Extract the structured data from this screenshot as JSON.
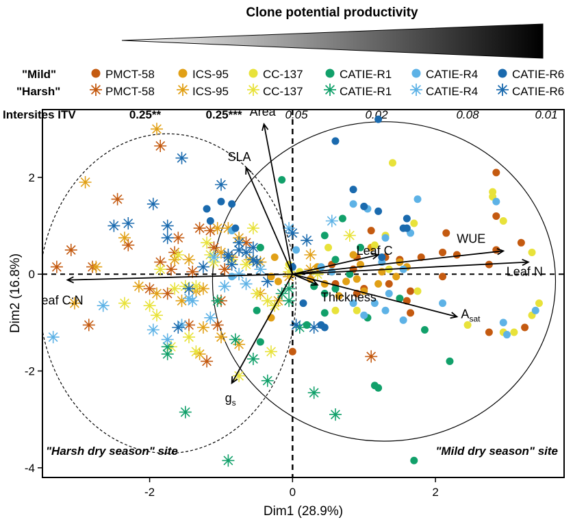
{
  "header": {
    "title": "Clone potential productivity",
    "mild_label": "\"Mild\"",
    "harsh_label": "\"Harsh\"",
    "itv_label": "Intersites ITV"
  },
  "clones": [
    {
      "name": "PMCT-58",
      "color": "#C45A10",
      "itv": "0.25**",
      "itv_bold": true
    },
    {
      "name": "ICS-95",
      "color": "#E1A016",
      "itv": "0.25***",
      "itv_bold": true
    },
    {
      "name": "CC-137",
      "color": "#E8E23A",
      "itv": "0.05",
      "itv_bold": false
    },
    {
      "name": "CATIE-R1",
      "color": "#11A06A",
      "itv": "0.02",
      "itv_bold": false
    },
    {
      "name": "CATIE-R4",
      "color": "#5DB2E6",
      "itv": "0.08",
      "itv_bold": false
    },
    {
      "name": "CATIE-R6",
      "color": "#1A6AAE",
      "itv": "0.01",
      "itv_bold": false
    }
  ],
  "site_labels": {
    "harsh": "\"Harsh dry season\" site",
    "mild": "\"Mild dry season\" site"
  },
  "chart_data": {
    "type": "scatter",
    "xlabel": "Dim1 (28.9%)",
    "ylabel": "Dim2 (16.8%)",
    "xlim": [
      -3.5,
      3.8
    ],
    "ylim": [
      -4.2,
      3.4
    ],
    "xticks": [
      -2,
      0,
      2
    ],
    "yticks": [
      -4,
      -2,
      0,
      2
    ],
    "grid": false,
    "ellipses": [
      {
        "site": "harsh",
        "center": [
          -1.75,
          -0.4
        ],
        "rx": 1.8,
        "ry": 3.3,
        "style": "dashed"
      },
      {
        "site": "mild",
        "center": [
          1.28,
          -0.15
        ],
        "rx": 2.4,
        "ry": 3.3,
        "style": "solid"
      }
    ],
    "loadings": [
      {
        "label": "Area",
        "x": -0.4,
        "y": 3.1
      },
      {
        "label": "SLA",
        "x": -0.65,
        "y": 2.2
      },
      {
        "label": "Leaf C",
        "x": 1.2,
        "y": 0.4
      },
      {
        "label": "WUE",
        "x": 2.95,
        "y": 0.48
      },
      {
        "label": "Leaf N",
        "x": 3.3,
        "y": 0.25
      },
      {
        "label": "Leaf C:N",
        "x": -3.15,
        "y": -0.12
      },
      {
        "label": "Thickness",
        "x": 0.35,
        "y": -0.22
      },
      {
        "label": "A",
        "sub": "sat",
        "x": 2.3,
        "y": -0.88
      },
      {
        "label": "g",
        "sub": "s",
        "x": -0.85,
        "y": -2.25
      }
    ],
    "series": [
      {
        "name": "PMCT-58",
        "site": "Mild",
        "marker": "circle",
        "points": [
          [
            2.85,
            2.1
          ],
          [
            2.85,
            1.2
          ],
          [
            3.2,
            0.65
          ],
          [
            2.85,
            0.5
          ],
          [
            2.15,
            0.85
          ],
          [
            2.1,
            0.45
          ],
          [
            2.75,
            0.2
          ],
          [
            1.8,
            0.35
          ],
          [
            1.5,
            0.3
          ],
          [
            1.1,
            0.9
          ],
          [
            0.9,
            0.35
          ],
          [
            1.65,
            -0.35
          ],
          [
            1.6,
            -0.55
          ],
          [
            2.1,
            -0.05
          ],
          [
            3.25,
            -1.1
          ],
          [
            2.75,
            -1.2
          ],
          [
            1.65,
            -0.8
          ],
          [
            0.55,
            0.2
          ],
          [
            0.6,
            -0.2
          ],
          [
            0.85,
            0.1
          ],
          [
            0.9,
            -0.4
          ],
          [
            1.0,
            -0.3
          ],
          [
            1.35,
            -0.2
          ],
          [
            0.0,
            -1.6
          ],
          [
            2.3,
            0.4
          ],
          [
            1.3,
            0.35
          ]
        ]
      },
      {
        "name": "ICS-95",
        "site": "Mild",
        "marker": "circle",
        "points": [
          [
            0.85,
            0.4
          ],
          [
            0.95,
            0.2
          ],
          [
            1.2,
            -0.2
          ],
          [
            1.45,
            -0.05
          ],
          [
            1.5,
            0.25
          ],
          [
            1.6,
            0.15
          ],
          [
            0.35,
            0.15
          ],
          [
            0.25,
            -0.1
          ],
          [
            0.45,
            -0.2
          ],
          [
            0.55,
            0.05
          ],
          [
            0.9,
            -0.1
          ],
          [
            1.0,
            -0.35
          ],
          [
            -0.25,
            0.35
          ],
          [
            -0.3,
            -0.9
          ],
          [
            0.65,
            -0.45
          ],
          [
            -0.3,
            -0.05
          ],
          [
            -0.2,
            -0.15
          ],
          [
            1.25,
            0.05
          ],
          [
            0.75,
            -0.15
          ],
          [
            1.1,
            0.55
          ]
        ]
      },
      {
        "name": "CC-137",
        "site": "Mild",
        "marker": "circle",
        "points": [
          [
            1.4,
            2.3
          ],
          [
            2.8,
            1.7
          ],
          [
            2.8,
            1.6
          ],
          [
            2.95,
            1.1
          ],
          [
            3.35,
            0.45
          ],
          [
            3.45,
            -0.6
          ],
          [
            3.35,
            -0.85
          ],
          [
            3.1,
            -1.2
          ],
          [
            2.95,
            -1.2
          ],
          [
            2.45,
            -1.05
          ],
          [
            1.7,
            1.05
          ],
          [
            1.3,
            0.8
          ],
          [
            0.9,
            -0.75
          ],
          [
            1.15,
            0.6
          ],
          [
            0.6,
            -0.75
          ],
          [
            1.35,
            0.1
          ],
          [
            0.1,
            0.05
          ],
          [
            -0.05,
            0.2
          ],
          [
            0.5,
            0.55
          ],
          [
            1.75,
            -0.35
          ]
        ]
      },
      {
        "name": "CATIE-R1",
        "site": "Mild",
        "marker": "circle",
        "points": [
          [
            -0.15,
            1.95
          ],
          [
            0.7,
            1.15
          ],
          [
            0.45,
            0.8
          ],
          [
            -0.45,
            0.55
          ],
          [
            0.95,
            0.55
          ],
          [
            0.6,
            0.3
          ],
          [
            0.45,
            -0.4
          ],
          [
            0.45,
            -0.8
          ],
          [
            -0.5,
            -0.75
          ],
          [
            -0.45,
            -1.4
          ],
          [
            1.15,
            -2.3
          ],
          [
            1.2,
            -2.35
          ],
          [
            1.5,
            -0.5
          ],
          [
            1.85,
            -1.15
          ],
          [
            2.2,
            -1.8
          ],
          [
            1.7,
            -3.85
          ],
          [
            0.3,
            -0.25
          ],
          [
            0.6,
            -0.3
          ],
          [
            0.2,
            -1.05
          ],
          [
            0.8,
            0.0
          ],
          [
            1.05,
            -0.9
          ]
        ]
      },
      {
        "name": "CATIE-R4",
        "site": "Mild",
        "marker": "circle",
        "points": [
          [
            1.75,
            1.55
          ],
          [
            2.85,
            1.5
          ],
          [
            1.05,
            1.35
          ],
          [
            0.85,
            1.45
          ],
          [
            1.3,
            0.75
          ],
          [
            1.65,
            0.85
          ],
          [
            1.25,
            0.25
          ],
          [
            1.55,
            0.1
          ],
          [
            1.35,
            -0.4
          ],
          [
            1.3,
            -0.75
          ],
          [
            1.55,
            -0.95
          ],
          [
            2.1,
            -0.6
          ],
          [
            2.95,
            -1.0
          ],
          [
            3.0,
            -1.25
          ],
          [
            3.4,
            -0.75
          ],
          [
            0.05,
            0.5
          ],
          [
            -0.85,
            0.9
          ],
          [
            1.0,
            -0.85
          ],
          [
            0.55,
            0.05
          ],
          [
            0.85,
            -0.6
          ],
          [
            1.15,
            -0.6
          ],
          [
            -0.85,
            -0.05
          ],
          [
            0.4,
            0.15
          ]
        ]
      },
      {
        "name": "CATIE-R6",
        "site": "Mild",
        "marker": "circle",
        "points": [
          [
            1.2,
            3.2
          ],
          [
            0.6,
            2.75
          ],
          [
            0.85,
            1.75
          ],
          [
            -1.0,
            1.5
          ],
          [
            -1.2,
            1.35
          ],
          [
            -0.85,
            1.45
          ],
          [
            -1.15,
            1.1
          ],
          [
            1.0,
            1.4
          ],
          [
            1.2,
            1.3
          ],
          [
            1.6,
            1.15
          ],
          [
            1.55,
            0.95
          ],
          [
            1.6,
            0.95
          ],
          [
            1.25,
            0.35
          ],
          [
            0.4,
            -1.05
          ],
          [
            0.45,
            -1.1
          ],
          [
            0.15,
            -0.6
          ],
          [
            -0.8,
            0.95
          ],
          [
            0.0,
            0.15
          ]
        ]
      },
      {
        "name": "PMCT-58",
        "site": "Harsh",
        "marker": "star",
        "points": [
          [
            -3.3,
            0.15
          ],
          [
            -3.1,
            0.5
          ],
          [
            -2.8,
            0.15
          ],
          [
            -2.85,
            -1.05
          ],
          [
            -2.45,
            1.55
          ],
          [
            -2.3,
            0.6
          ],
          [
            -1.85,
            2.65
          ],
          [
            -1.7,
            0.1
          ],
          [
            -1.6,
            0.75
          ],
          [
            -1.3,
            0.95
          ],
          [
            -1.15,
            0.9
          ],
          [
            -1.1,
            0.55
          ],
          [
            -1.0,
            -0.55
          ],
          [
            -1.05,
            -1.05
          ],
          [
            -1.2,
            -1.8
          ],
          [
            -1.45,
            -1.05
          ],
          [
            -1.75,
            -0.4
          ],
          [
            -1.85,
            0.25
          ],
          [
            -1.65,
            0.45
          ],
          [
            -2.0,
            -0.3
          ],
          [
            -0.85,
            0.35
          ],
          [
            1.1,
            -1.7
          ],
          [
            -0.65,
            0.65
          ],
          [
            -0.95,
            0.1
          ],
          [
            -1.4,
            0.05
          ]
        ]
      },
      {
        "name": "ICS-95",
        "site": "Harsh",
        "marker": "star",
        "points": [
          [
            -1.9,
            3.0
          ],
          [
            -2.9,
            1.9
          ],
          [
            -2.75,
            0.15
          ],
          [
            -3.05,
            -0.6
          ],
          [
            -2.15,
            -0.25
          ],
          [
            -1.9,
            -0.4
          ],
          [
            -1.55,
            -0.55
          ],
          [
            -1.45,
            0.3
          ],
          [
            -1.35,
            -0.35
          ],
          [
            -1.25,
            -0.3
          ],
          [
            -1.05,
            0.95
          ],
          [
            -0.9,
            0.95
          ],
          [
            -0.75,
            0.75
          ],
          [
            -0.6,
            0.3
          ],
          [
            -0.45,
            0.25
          ],
          [
            -1.3,
            -1.65
          ],
          [
            -1.25,
            -1.1
          ],
          [
            -1.0,
            -1.3
          ],
          [
            -0.75,
            -1.45
          ],
          [
            -0.2,
            -0.55
          ],
          [
            -0.05,
            -0.05
          ],
          [
            0.25,
            0.1
          ],
          [
            -0.45,
            -0.4
          ],
          [
            -1.0,
            0.45
          ],
          [
            -2.35,
            0.75
          ],
          [
            -1.65,
            0.3
          ],
          [
            0.25,
            0.4
          ]
        ]
      },
      {
        "name": "CC-137",
        "site": "Harsh",
        "marker": "star",
        "points": [
          [
            -2.35,
            -0.6
          ],
          [
            -2.0,
            -0.65
          ],
          [
            -1.9,
            -0.85
          ],
          [
            -1.85,
            0.1
          ],
          [
            -1.6,
            0.4
          ],
          [
            -1.65,
            -0.3
          ],
          [
            -1.7,
            -1.5
          ],
          [
            -1.45,
            -1.3
          ],
          [
            -1.35,
            -1.6
          ],
          [
            -1.2,
            0.65
          ],
          [
            -1.15,
            0.4
          ],
          [
            -1.1,
            0.25
          ],
          [
            -0.85,
            0.3
          ],
          [
            -0.65,
            0.2
          ],
          [
            -0.55,
            0.95
          ],
          [
            -0.5,
            -0.4
          ],
          [
            -0.35,
            -0.55
          ],
          [
            -0.25,
            -0.65
          ],
          [
            -0.3,
            -1.6
          ],
          [
            -0.75,
            -2.1
          ],
          [
            0.8,
            0.8
          ],
          [
            -0.05,
            0.05
          ],
          [
            0.35,
            0.0
          ],
          [
            -1.35,
            -0.25
          ],
          [
            -1.5,
            -0.25
          ]
        ]
      },
      {
        "name": "CATIE-R1",
        "site": "Harsh",
        "marker": "star",
        "points": [
          [
            -1.75,
            -1.5
          ],
          [
            -1.75,
            -1.65
          ],
          [
            -1.5,
            -2.85
          ],
          [
            -0.9,
            -3.85
          ],
          [
            -0.35,
            -2.2
          ],
          [
            0.3,
            -2.45
          ],
          [
            0.6,
            -2.9
          ],
          [
            -0.55,
            -1.75
          ],
          [
            -1.05,
            -0.55
          ],
          [
            -0.05,
            -0.3
          ],
          [
            0.1,
            -1.1
          ],
          [
            -0.15,
            -0.4
          ],
          [
            -0.05,
            -0.55
          ],
          [
            -0.8,
            -1.35
          ]
        ]
      },
      {
        "name": "CATIE-R4",
        "site": "Harsh",
        "marker": "star",
        "points": [
          [
            -3.35,
            -1.3
          ],
          [
            -2.65,
            -0.65
          ],
          [
            -1.95,
            -1.15
          ],
          [
            -1.75,
            -1.35
          ],
          [
            -1.45,
            -0.5
          ],
          [
            -1.4,
            -0.55
          ],
          [
            -1.15,
            -0.9
          ],
          [
            -1.1,
            0.35
          ],
          [
            -0.05,
            0.95
          ],
          [
            0.55,
            1.1
          ],
          [
            -1.55,
            -1.05
          ],
          [
            -0.95,
            -0.25
          ],
          [
            -0.75,
            0.0
          ],
          [
            -0.65,
            -0.2
          ],
          [
            -0.45,
            0.1
          ]
        ]
      },
      {
        "name": "CATIE-R6",
        "site": "Harsh",
        "marker": "star",
        "points": [
          [
            -2.5,
            1.0
          ],
          [
            -2.3,
            1.05
          ],
          [
            -1.95,
            1.45
          ],
          [
            -1.75,
            1.0
          ],
          [
            -1.75,
            0.75
          ],
          [
            -1.55,
            2.4
          ],
          [
            -1.25,
            0.15
          ],
          [
            -1.0,
            1.85
          ],
          [
            -0.9,
            0.35
          ],
          [
            -0.75,
            0.65
          ],
          [
            -0.65,
            0.45
          ],
          [
            -0.55,
            0.3
          ],
          [
            -0.55,
            0.55
          ],
          [
            -0.5,
            0.25
          ],
          [
            -0.85,
            0.2
          ],
          [
            -0.9,
            0.4
          ],
          [
            -0.75,
            0.5
          ],
          [
            -0.35,
            -0.15
          ],
          [
            0.0,
            0.85
          ],
          [
            0.2,
            0.7
          ],
          [
            0.05,
            -1.05
          ],
          [
            0.3,
            -1.1
          ],
          [
            -1.45,
            -0.3
          ],
          [
            -1.6,
            -1.1
          ]
        ]
      }
    ]
  }
}
